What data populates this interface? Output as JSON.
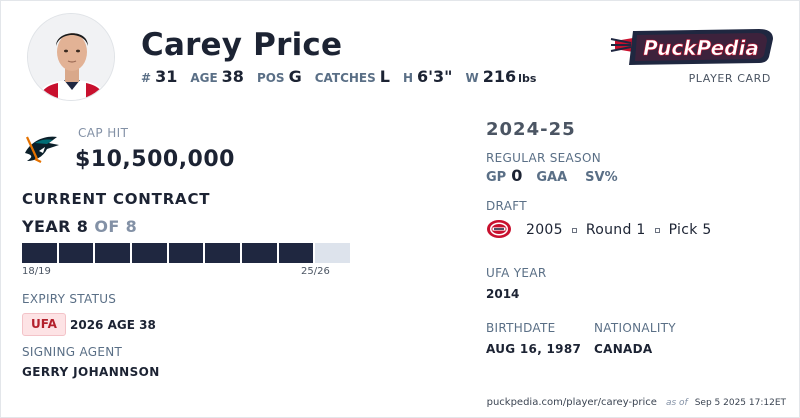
{
  "player": {
    "name": "Carey Price",
    "number_label": "#",
    "number": "31",
    "age_label": "AGE",
    "age": "38",
    "pos_label": "POS",
    "pos": "G",
    "catches_label": "CATCHES",
    "catches": "L",
    "height_label": "H",
    "height": "6'3\"",
    "weight_label": "W",
    "weight": "216",
    "weight_unit": "lbs"
  },
  "brand": {
    "logo_text": "PuckPedia",
    "card_label": "PLAYER CARD",
    "accent_red": "#c8102e",
    "accent_navy": "#1f2740"
  },
  "cap": {
    "label": "CAP HIT",
    "value": "$10,500,000",
    "team_logo": "sharks-logo-icon"
  },
  "contract": {
    "heading": "CURRENT CONTRACT",
    "year_prefix": "YEAR 8",
    "year_suffix": "OF 8",
    "years_total": 8,
    "years_done": 8,
    "start_season": "18/19",
    "end_season": "25/26"
  },
  "expiry": {
    "label": "EXPIRY STATUS",
    "badge": "UFA",
    "value": "2026 AGE 38"
  },
  "agent": {
    "label": "SIGNING AGENT",
    "value": "GERRY JOHANNSON"
  },
  "season": {
    "title": "2024-25",
    "label": "REGULAR SEASON",
    "gp_label": "GP",
    "gp": "0",
    "gaa_label": "GAA",
    "sv_label": "SV%"
  },
  "draft": {
    "label": "DRAFT",
    "team_logo": "canadiens-logo-icon",
    "year": "2005",
    "round": "Round 1",
    "pick": "Pick 5"
  },
  "ufa_year": {
    "label": "UFA YEAR",
    "value": "2014"
  },
  "birthdate": {
    "label": "BIRTHDATE",
    "value": "AUG 16, 1987"
  },
  "nationality": {
    "label": "NATIONALITY",
    "value": "CANADA"
  },
  "footer": {
    "url": "puckpedia.com/player/carey-price",
    "as_of": "as of",
    "timestamp": "Sep 5 2025 17:12ET"
  }
}
